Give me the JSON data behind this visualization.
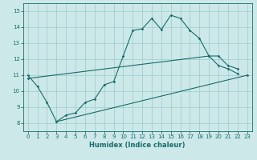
{
  "xlabel": "Humidex (Indice chaleur)",
  "xlim": [
    -0.5,
    23.5
  ],
  "ylim": [
    7.5,
    15.5
  ],
  "yticks": [
    8,
    9,
    10,
    11,
    12,
    13,
    14,
    15
  ],
  "xticks": [
    0,
    1,
    2,
    3,
    4,
    5,
    6,
    7,
    8,
    9,
    10,
    11,
    12,
    13,
    14,
    15,
    16,
    17,
    18,
    19,
    20,
    21,
    22,
    23
  ],
  "bg_color": "#cce8e8",
  "line_color": "#1a6b6b",
  "grid_color": "#99cccc",
  "line1_x": [
    0,
    1,
    2,
    3,
    4,
    5,
    6,
    7,
    8,
    9,
    10,
    11,
    12,
    13,
    14,
    15,
    16,
    17,
    18,
    19,
    20,
    21,
    22
  ],
  "line1_y": [
    11.0,
    10.3,
    9.3,
    8.1,
    8.5,
    8.65,
    9.3,
    9.5,
    10.4,
    10.6,
    12.2,
    13.8,
    13.9,
    14.55,
    13.85,
    14.75,
    14.55,
    13.8,
    13.3,
    12.2,
    11.6,
    11.4,
    11.1
  ],
  "line2_x": [
    0,
    19,
    20,
    21,
    22
  ],
  "line2_y": [
    10.8,
    12.2,
    12.2,
    11.6,
    11.4
  ],
  "line3_x": [
    3,
    23
  ],
  "line3_y": [
    8.1,
    11.0
  ]
}
